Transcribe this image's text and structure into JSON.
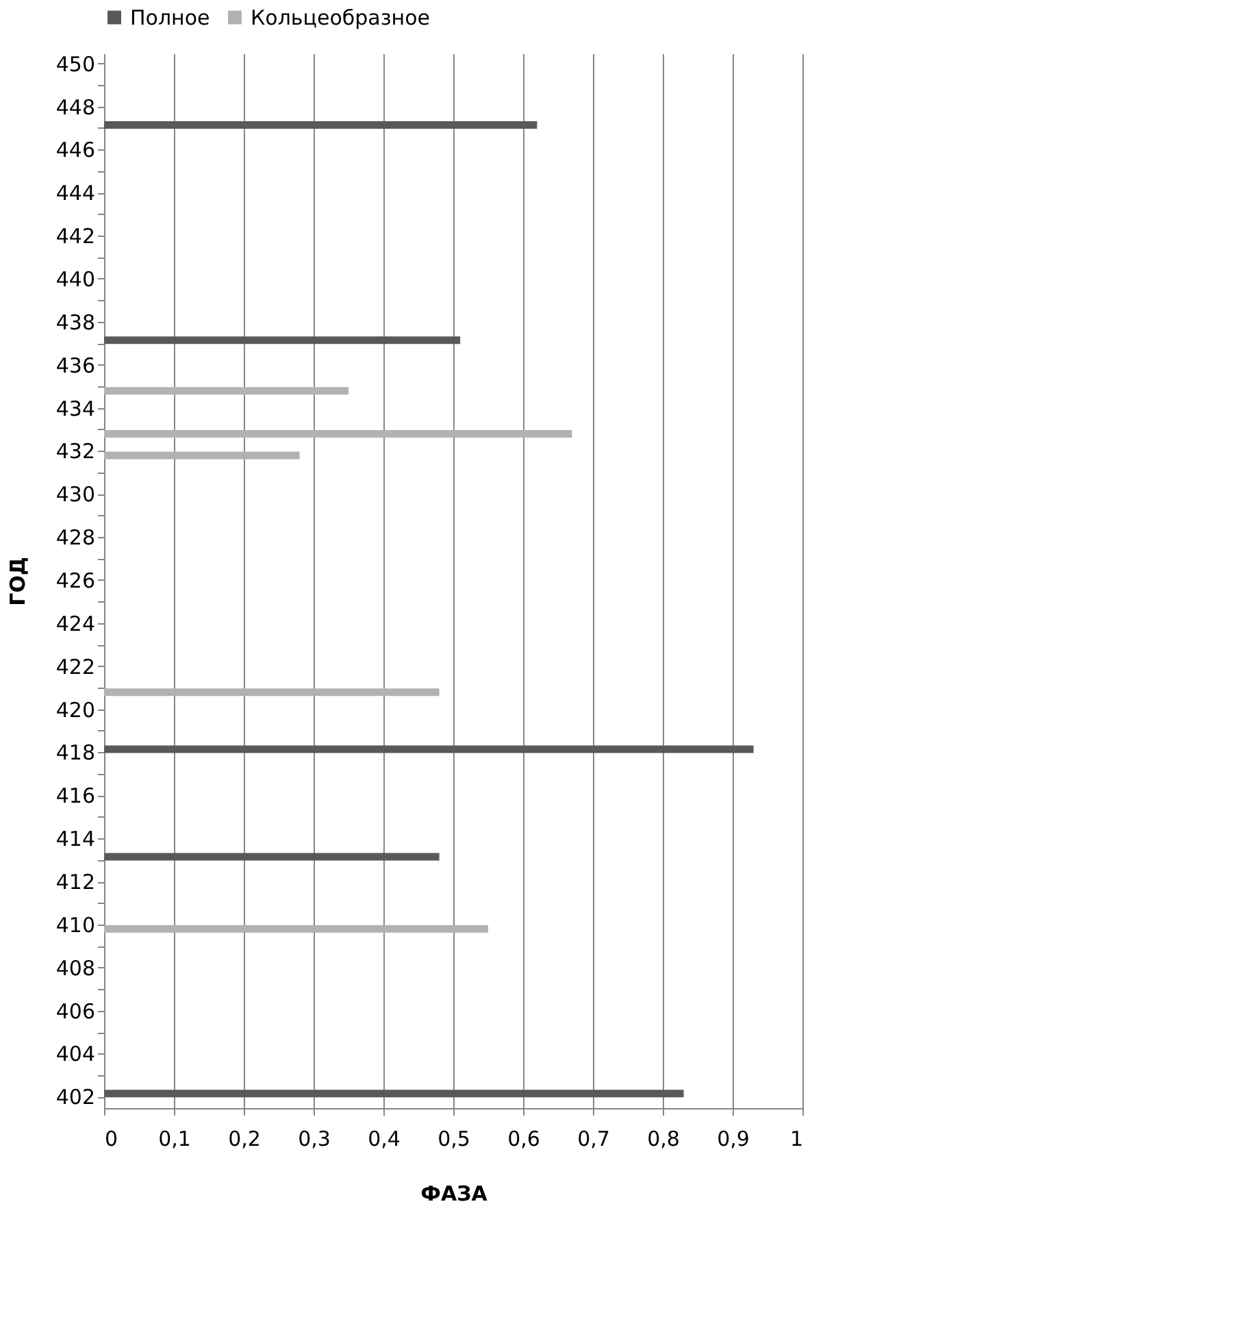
{
  "chart_data": {
    "type": "bar",
    "orientation": "horizontal",
    "xlabel": "ФАЗА",
    "ylabel": "ГОД",
    "categories": [
      "450",
      null,
      "448",
      null,
      "446",
      null,
      "444",
      null,
      "442",
      null,
      "440",
      null,
      "438",
      null,
      "436",
      null,
      "434",
      null,
      "432",
      null,
      "430",
      null,
      "428",
      null,
      "426",
      null,
      "424",
      null,
      "422",
      null,
      "420",
      null,
      "418",
      null,
      "416",
      null,
      "414",
      null,
      "412",
      null,
      "410",
      null,
      "408",
      null,
      "406",
      null,
      "404",
      null,
      "402"
    ],
    "series": [
      {
        "name": "Полное",
        "color": "#595959",
        "values": [
          null,
          null,
          null,
          0.62,
          null,
          null,
          null,
          null,
          null,
          null,
          null,
          null,
          null,
          0.51,
          null,
          null,
          null,
          null,
          null,
          null,
          null,
          null,
          null,
          null,
          null,
          null,
          null,
          null,
          null,
          null,
          null,
          null,
          0.93,
          null,
          null,
          null,
          null,
          0.48,
          null,
          null,
          null,
          null,
          null,
          null,
          null,
          null,
          null,
          null,
          0.83
        ]
      },
      {
        "name": "Кольцеобразное",
        "color": "#b2b2b2",
        "values": [
          null,
          null,
          null,
          null,
          null,
          null,
          null,
          null,
          null,
          null,
          null,
          null,
          null,
          null,
          null,
          0.35,
          null,
          0.67,
          0.28,
          null,
          null,
          null,
          null,
          null,
          null,
          null,
          null,
          null,
          null,
          0.48,
          null,
          null,
          null,
          null,
          null,
          null,
          null,
          null,
          null,
          null,
          0.55,
          null,
          null,
          null,
          null,
          null,
          null,
          null,
          null
        ]
      }
    ],
    "xlim": [
      0,
      1
    ],
    "xticks": [
      0,
      {
        "value": 0.1,
        "label": "0,1"
      },
      {
        "value": 0.2,
        "label": "0,2"
      },
      {
        "value": 0.3,
        "label": "0,3"
      },
      {
        "value": 0.4,
        "label": "0,4"
      },
      {
        "value": 0.5,
        "label": "0,5"
      },
      {
        "value": 0.6,
        "label": "0,6"
      },
      {
        "value": 0.7,
        "label": "0,7"
      },
      {
        "value": 0.8,
        "label": "0,8"
      },
      {
        "value": 0.9,
        "label": "0,9"
      },
      1
    ],
    "grid": "x",
    "legend": "top"
  }
}
